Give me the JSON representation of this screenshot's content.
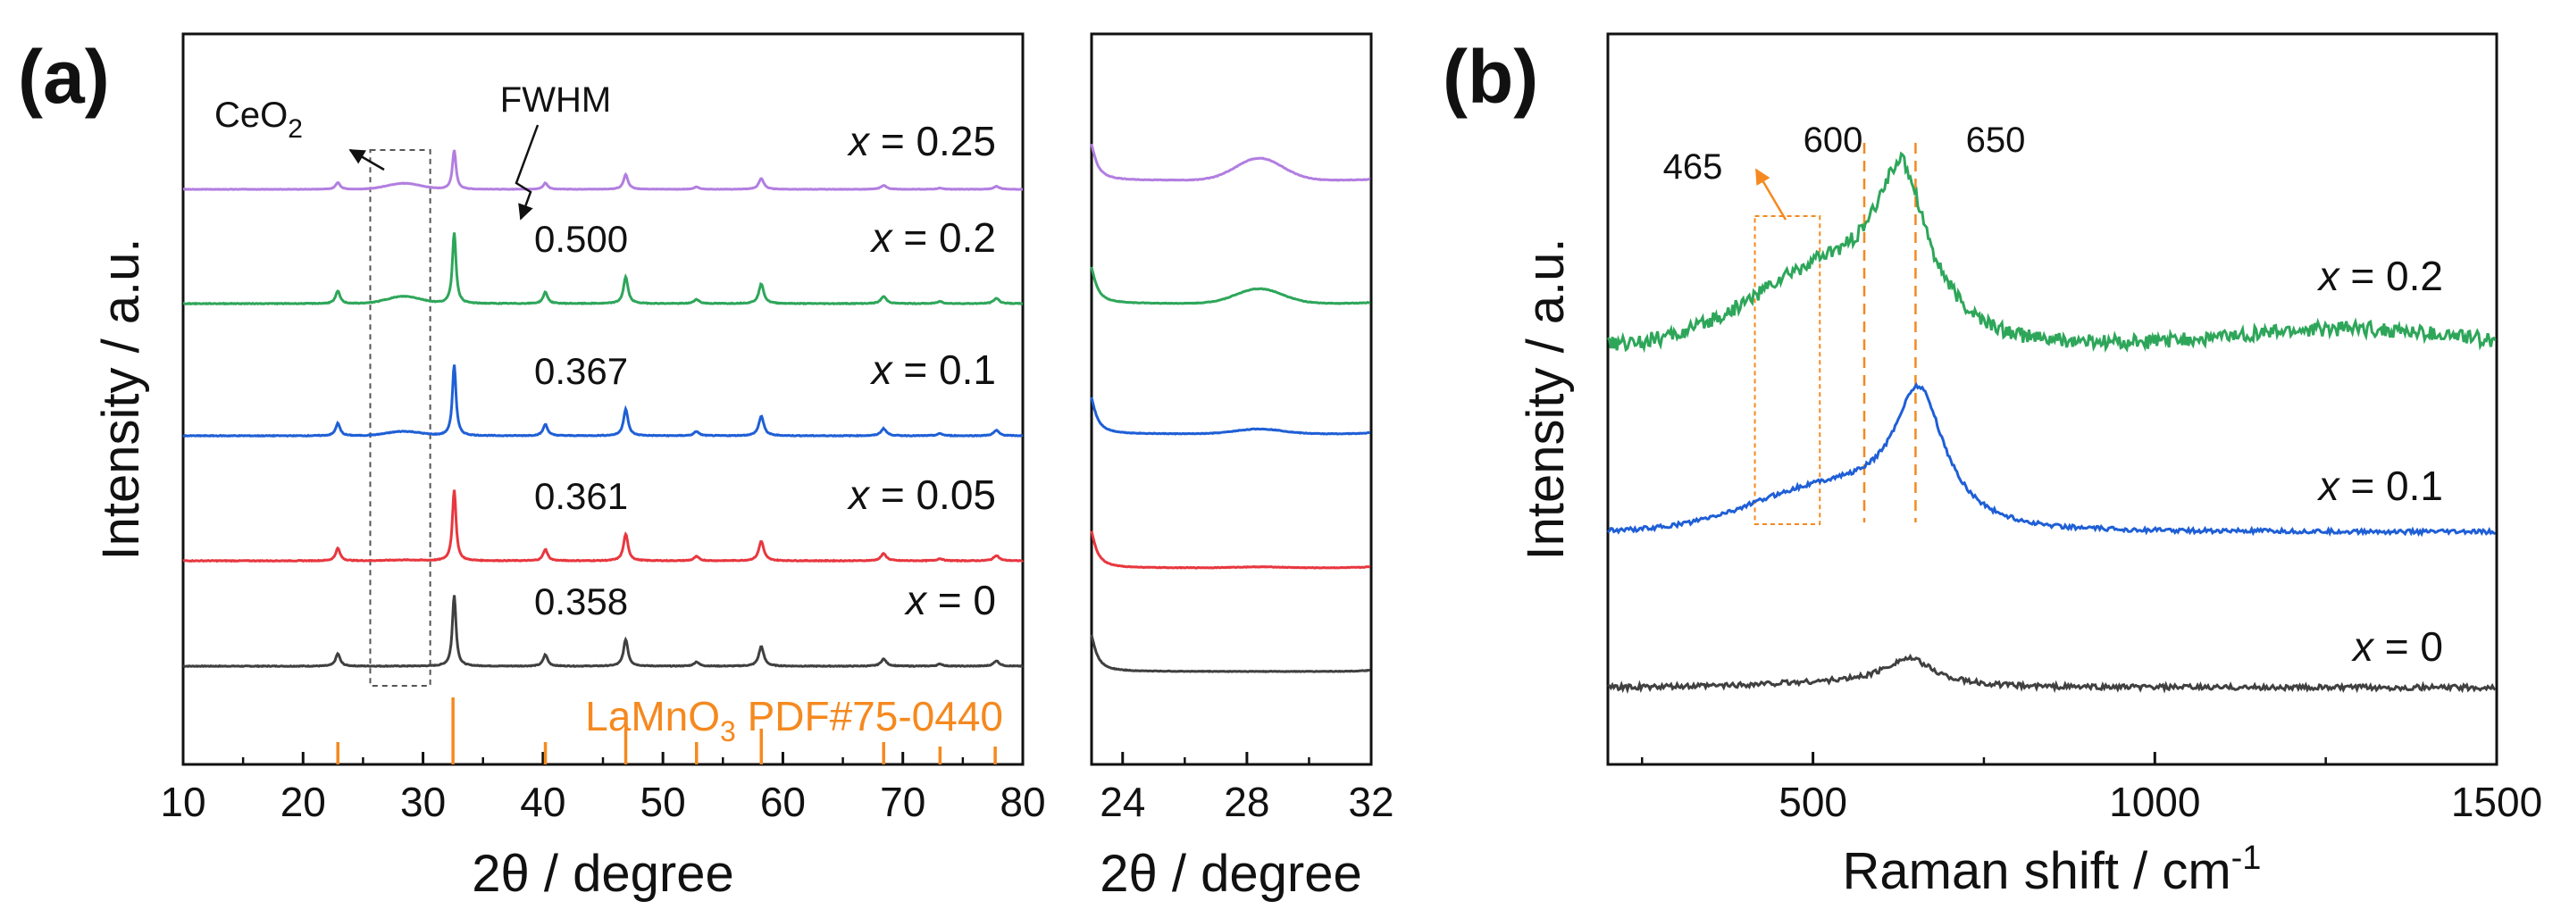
{
  "colors": {
    "axis": "#111111",
    "reference": "#f5891f",
    "series": {
      "x = 0": "#404040",
      "x = 0.05": "#e8373f",
      "x = 0.1": "#1f5fd6",
      "x = 0.2": "#2ea65a",
      "x = 0.25": "#b27ee0"
    }
  },
  "chart_data": [
    {
      "panel": "(a)",
      "type": "line",
      "title": "",
      "xlabel": "2θ / degree",
      "ylabel": "Intensity / a.u.",
      "xlim": [
        10,
        80
      ],
      "xticks": [
        10,
        20,
        30,
        40,
        50,
        60,
        70,
        80
      ],
      "yticks": "none",
      "series": [
        {
          "name": "x = 0",
          "label_var": "x",
          "label_val": " = 0",
          "fwhm": "0.358",
          "offset": 0
        },
        {
          "name": "x = 0.05",
          "label_var": "x",
          "label_val": " = 0.05",
          "fwhm": "0.361",
          "offset": 1
        },
        {
          "name": "x = 0.1",
          "label_var": "x",
          "label_val": " = 0.1",
          "fwhm": "0.367",
          "offset": 2
        },
        {
          "name": "x = 0.2",
          "label_var": "x",
          "label_val": " = 0.2",
          "fwhm": "0.500",
          "offset": 3
        },
        {
          "name": "x = 0.25",
          "label_var": "x",
          "label_val": " = 0.25",
          "fwhm": "",
          "offset": 4
        }
      ],
      "perovskite_peaks": [
        {
          "pos": 22.9,
          "height": 0.35,
          "width": 0.45
        },
        {
          "pos": 32.6,
          "height": 2.0,
          "width": 0.36
        },
        {
          "pos": 40.2,
          "height": 0.32,
          "width": 0.45
        },
        {
          "pos": 46.9,
          "height": 0.75,
          "width": 0.45
        },
        {
          "pos": 52.8,
          "height": 0.12,
          "width": 0.5
        },
        {
          "pos": 58.2,
          "height": 0.55,
          "width": 0.5
        },
        {
          "pos": 68.4,
          "height": 0.2,
          "width": 0.55
        },
        {
          "pos": 73.1,
          "height": 0.06,
          "width": 0.55
        },
        {
          "pos": 77.8,
          "height": 0.15,
          "width": 0.55
        }
      ],
      "ceo2_peak_position": 28.4,
      "ceo2_heights": [
        0,
        0.02,
        0.12,
        0.2,
        0.3
      ],
      "reference": {
        "label_main": "LaMnO",
        "label_sub": "3",
        "label_rest": " PDF#75-0440",
        "lines": [
          {
            "pos": 22.9,
            "rel": 0.25
          },
          {
            "pos": 32.5,
            "rel": 0.75
          },
          {
            "pos": 40.2,
            "rel": 0.25
          },
          {
            "pos": 46.9,
            "rel": 0.4
          },
          {
            "pos": 52.8,
            "rel": 0.25
          },
          {
            "pos": 58.2,
            "rel": 0.4
          },
          {
            "pos": 68.4,
            "rel": 0.25
          },
          {
            "pos": 73.1,
            "rel": 0.2
          },
          {
            "pos": 77.7,
            "rel": 0.2
          }
        ]
      },
      "annotations": {
        "ceo2_main": "CeO",
        "ceo2_sub": "2",
        "fwhm": "FWHM",
        "box_range": [
          25.6,
          30.6
        ]
      }
    },
    {
      "panel": "(a) inset",
      "type": "line",
      "xlabel": "2θ / degree",
      "xlim": [
        23,
        32
      ],
      "xticks": [
        24,
        28,
        32
      ],
      "ceo2_peak_position": 28.4,
      "ceo2_heights": [
        0,
        0.02,
        0.1,
        0.3,
        0.45
      ]
    },
    {
      "panel": "(b)",
      "type": "line",
      "title": "",
      "xlabel_main": "Raman shift / cm",
      "xlabel_sup": "-1",
      "ylabel": "Intensity / a.u.",
      "xlim": [
        200,
        1500
      ],
      "xticks": [
        500,
        1000,
        1500
      ],
      "series": [
        {
          "name": "x = 0",
          "label_var": "x",
          "label_val": " = 0",
          "amp": 0.18,
          "peak": 640,
          "noise": 0.012,
          "shoulder": 0.1,
          "slope": 0.0
        },
        {
          "name": "x = 0.1",
          "label_var": "x",
          "label_val": " = 0.1",
          "amp": 0.85,
          "peak": 655,
          "noise": 0.01,
          "shoulder": 0.22,
          "slope": 0.0
        },
        {
          "name": "x = 0.2",
          "label_var": "x",
          "label_val": " = 0.2",
          "amp": 0.95,
          "peak": 630,
          "noise": 0.035,
          "shoulder": 0.35,
          "slope": 0.0
        }
      ],
      "annotations": {
        "band_465": "465",
        "band_600": "600",
        "band_650": "650",
        "dashed_lines": [
          575,
          650
        ],
        "box_range": [
          415,
          510
        ]
      }
    }
  ]
}
